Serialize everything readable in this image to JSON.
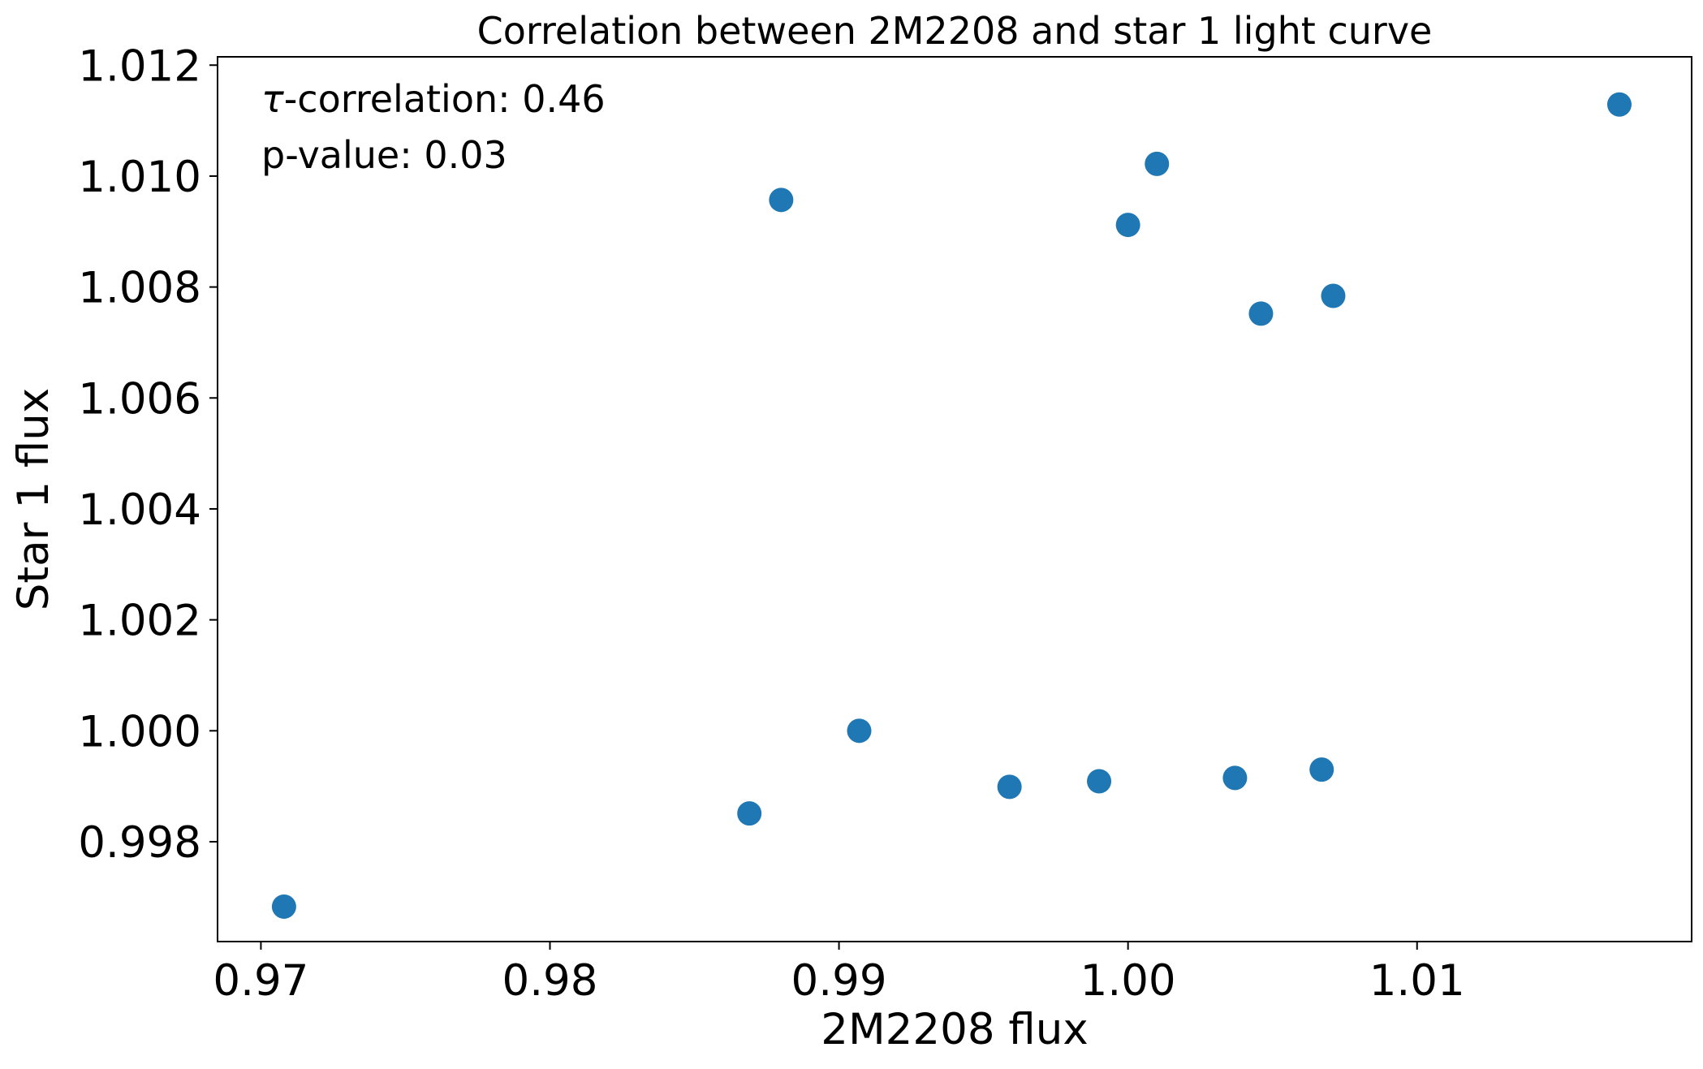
{
  "chart_data": {
    "type": "scatter",
    "title": "Correlation between 2M2208 and star 1 light curve",
    "xlabel": "2M2208 flux",
    "ylabel": "Star 1 flux",
    "xlim": [
      0.9685,
      1.0195
    ],
    "ylim": [
      0.9962,
      1.01215
    ],
    "xticks": [
      "0.97",
      "0.98",
      "0.99",
      "1.00",
      "1.01"
    ],
    "xtick_values": [
      0.97,
      0.98,
      0.99,
      1.0,
      1.01
    ],
    "yticks": [
      "0.998",
      "1.000",
      "1.002",
      "1.004",
      "1.006",
      "1.008",
      "1.010",
      "1.012"
    ],
    "ytick_values": [
      0.998,
      1.0,
      1.002,
      1.004,
      1.006,
      1.008,
      1.01,
      1.012
    ],
    "grid": false,
    "marker_color": "#1f77b4",
    "annotations": {
      "tau_symbol": "τ",
      "tau_text": "-correlation: 0.46",
      "pvalue_text": "p-value: 0.03"
    },
    "points": [
      {
        "x": 0.9708,
        "y": 0.99683
      },
      {
        "x": 0.9869,
        "y": 0.99851
      },
      {
        "x": 0.988,
        "y": 1.00957
      },
      {
        "x": 0.9907,
        "y": 1.0
      },
      {
        "x": 0.9959,
        "y": 0.99899
      },
      {
        "x": 0.999,
        "y": 0.99909
      },
      {
        "x": 1.0,
        "y": 1.00912
      },
      {
        "x": 1.001,
        "y": 1.01022
      },
      {
        "x": 1.0037,
        "y": 0.99915
      },
      {
        "x": 1.0046,
        "y": 1.00752
      },
      {
        "x": 1.0067,
        "y": 0.9993
      },
      {
        "x": 1.0071,
        "y": 1.00784
      },
      {
        "x": 1.017,
        "y": 1.01129
      }
    ]
  }
}
